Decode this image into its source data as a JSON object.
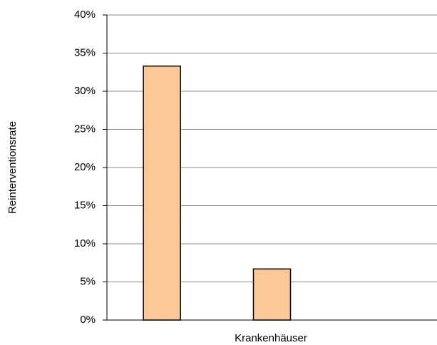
{
  "chart_data": {
    "type": "bar",
    "x_label": "Krankenhäuser",
    "y_label": "Reinterventionsrate",
    "categories": [
      null,
      null,
      null
    ],
    "values": [
      33.3,
      6.7,
      null
    ],
    "color": "#fdc897",
    "ylim": [
      0,
      40
    ],
    "yticks": [
      {
        "value": 0,
        "label": "0%"
      },
      {
        "value": 5,
        "label": "5%"
      },
      {
        "value": 10,
        "label": "10%"
      },
      {
        "value": 15,
        "label": "15%"
      },
      {
        "value": 20,
        "label": "20%"
      },
      {
        "value": 25,
        "label": "25%"
      },
      {
        "value": 30,
        "label": "30%"
      },
      {
        "value": 35,
        "label": "35%"
      },
      {
        "value": 40,
        "label": "40%"
      }
    ],
    "grid": true
  }
}
